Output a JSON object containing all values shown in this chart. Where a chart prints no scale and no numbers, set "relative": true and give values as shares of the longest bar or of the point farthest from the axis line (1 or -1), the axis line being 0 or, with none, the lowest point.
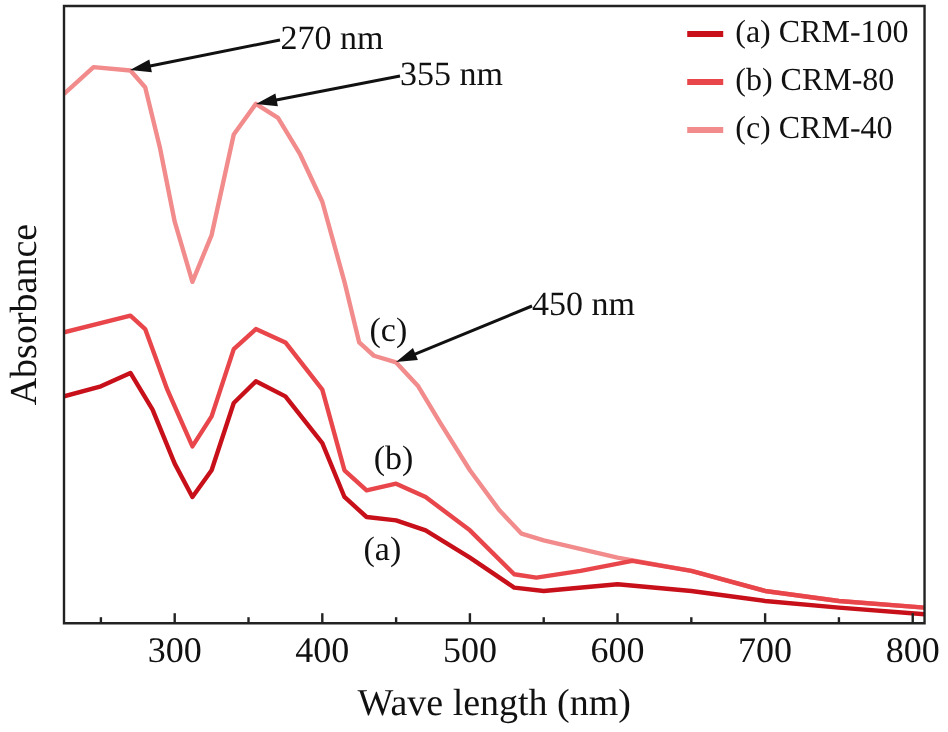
{
  "chart_data": {
    "type": "line",
    "xlabel": "Wave length (nm)",
    "ylabel": "Absorbance",
    "relative": true,
    "legend": "top right",
    "marker": "none",
    "line_style": "solid",
    "grid": false,
    "xlim": [
      225,
      808
    ],
    "xticks": [
      {
        "value": 250,
        "label": null
      },
      300,
      {
        "value": 350,
        "label": null
      },
      400,
      {
        "value": 450,
        "label": null
      },
      500,
      {
        "value": 550,
        "label": null
      },
      600,
      {
        "value": 650,
        "label": null
      },
      700,
      {
        "value": 750,
        "label": null
      },
      800
    ],
    "series": [
      {
        "name": "(a) CRM-100",
        "color": "#c8101a",
        "x": [
          225,
          250,
          270,
          285,
          300,
          312,
          325,
          340,
          355,
          375,
          400,
          415,
          430,
          450,
          470,
          500,
          530,
          550,
          600,
          650,
          700,
          750,
          808
        ],
        "values": [
          0.408,
          0.426,
          0.45,
          0.384,
          0.287,
          0.227,
          0.275,
          0.396,
          0.435,
          0.408,
          0.324,
          0.227,
          0.191,
          0.185,
          0.167,
          0.118,
          0.064,
          0.058,
          0.07,
          0.058,
          0.04,
          0.028,
          0.016
        ]
      },
      {
        "name": "(b) CRM-80",
        "color": "#e8464a",
        "x": [
          225,
          270,
          280,
          295,
          312,
          325,
          340,
          355,
          375,
          400,
          415,
          430,
          450,
          470,
          500,
          530,
          545,
          575,
          610,
          650,
          700,
          750,
          808
        ],
        "values": [
          0.523,
          0.553,
          0.529,
          0.42,
          0.318,
          0.372,
          0.493,
          0.529,
          0.505,
          0.42,
          0.275,
          0.239,
          0.251,
          0.227,
          0.167,
          0.088,
          0.082,
          0.094,
          0.112,
          0.094,
          0.058,
          0.04,
          0.028
        ]
      },
      {
        "name": "(c) CRM-40",
        "color": "#f28b8b",
        "x": [
          225,
          245,
          270,
          280,
          290,
          300,
          312,
          325,
          340,
          355,
          370,
          385,
          400,
          415,
          425,
          435,
          450,
          465,
          480,
          500,
          520,
          535,
          550,
          600,
          650,
          700,
          750,
          808
        ],
        "values": [
          0.952,
          1.0,
          0.994,
          0.964,
          0.855,
          0.722,
          0.614,
          0.698,
          0.879,
          0.934,
          0.909,
          0.843,
          0.758,
          0.614,
          0.505,
          0.481,
          0.469,
          0.426,
          0.36,
          0.275,
          0.203,
          0.161,
          0.149,
          0.118,
          0.094,
          0.058,
          0.04,
          0.028
        ]
      }
    ],
    "annotations": [
      {
        "text": "270 nm",
        "x": 270,
        "y": 0.994
      },
      {
        "text": "355 nm",
        "x": 355,
        "y": 0.934
      },
      {
        "text": "450 nm",
        "x": 450,
        "y": 0.469
      },
      "(a)",
      "(b)",
      "(c)"
    ]
  }
}
